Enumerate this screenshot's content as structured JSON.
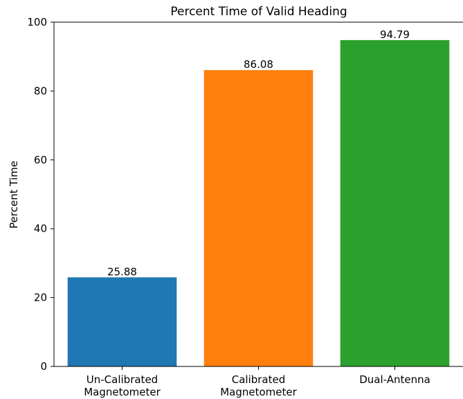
{
  "chart_data": {
    "type": "bar",
    "title": "Percent Time of Valid Heading",
    "xlabel": "",
    "ylabel": "Percent Time",
    "ylim": [
      0,
      100
    ],
    "yticks": [
      0,
      20,
      40,
      60,
      80,
      100
    ],
    "categories": [
      [
        "Un-Calibrated",
        "Magnetometer"
      ],
      [
        "Calibrated",
        "Magnetometer"
      ],
      [
        "Dual-Antenna"
      ]
    ],
    "values": [
      25.88,
      86.08,
      94.79
    ],
    "value_labels": [
      "25.88",
      "86.08",
      "94.79"
    ],
    "colors": [
      "#1f77b4",
      "#ff7f0e",
      "#2ca02c"
    ],
    "grid": false,
    "legend": "none"
  }
}
